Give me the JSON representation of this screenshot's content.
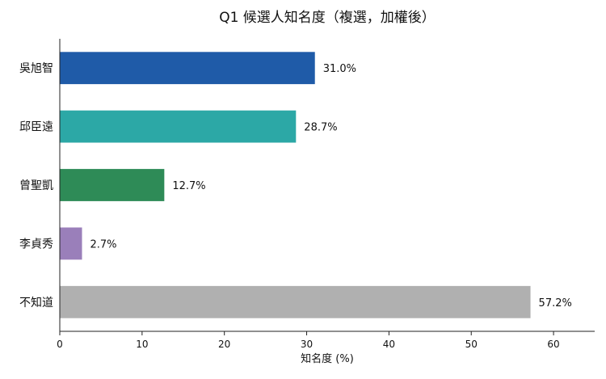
{
  "chart_data": {
    "type": "bar",
    "orientation": "horizontal",
    "title": "Q1 候選人知名度（複選，加權後）",
    "xlabel": "知名度 (%)",
    "ylabel": "",
    "categories": [
      "吳旭智",
      "邱臣遠",
      "曾聖凱",
      "李貞秀",
      "不知道"
    ],
    "values": [
      31.0,
      28.7,
      12.7,
      2.7,
      57.2
    ],
    "value_labels": [
      "31.0%",
      "28.7%",
      "12.7%",
      "2.7%",
      "57.2%"
    ],
    "colors": [
      "#1f5ba8",
      "#2ca8a6",
      "#2e8b57",
      "#9a7fba",
      "#b0b0b0"
    ],
    "xlim": [
      0,
      65
    ],
    "xticks": [
      0,
      10,
      20,
      30,
      40,
      50,
      60
    ],
    "grid": false,
    "legend": "none"
  }
}
